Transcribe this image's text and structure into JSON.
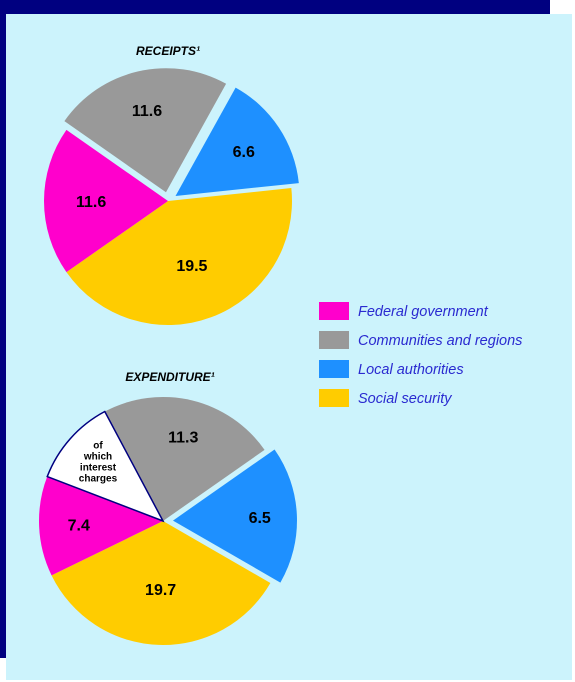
{
  "colors": {
    "federal": "#ff00cc",
    "communities": "#999999",
    "local": "#1e90ff",
    "social": "#ffcc00",
    "interest": "#ffffff"
  },
  "legend": [
    {
      "label": "Federal government",
      "color_key": "federal"
    },
    {
      "label": "Communities and regions",
      "color_key": "communities"
    },
    {
      "label": "Local authorities",
      "color_key": "local"
    },
    {
      "label": "Social security",
      "color_key": "social"
    }
  ],
  "chart_data": [
    {
      "type": "pie",
      "title": "RECEIPTS¹",
      "slices": [
        {
          "label": "Communities and regions",
          "value": 11.6,
          "color_key": "communities",
          "exploded": true
        },
        {
          "label": "Local authorities",
          "value": 6.6,
          "color_key": "local",
          "exploded": true
        },
        {
          "label": "Social security",
          "value": 19.5,
          "color_key": "social",
          "exploded": false
        },
        {
          "label": "Federal government",
          "value": 11.6,
          "color_key": "federal",
          "exploded": false
        }
      ]
    },
    {
      "type": "pie",
      "title": "EXPENDITURE¹",
      "slices": [
        {
          "label": "Communities and regions",
          "value": 11.3,
          "color_key": "communities",
          "exploded": false
        },
        {
          "label": "Local authorities",
          "value": 6.5,
          "color_key": "local",
          "exploded": true
        },
        {
          "label": "Social security",
          "value": 19.7,
          "color_key": "social",
          "exploded": false
        },
        {
          "label": "Federal government",
          "value": 7.4,
          "color_key": "federal",
          "exploded": false
        },
        {
          "label": "of which interest charges",
          "value_shown": false,
          "color_key": "interest",
          "exploded": false,
          "lines": [
            "of",
            "which",
            "interest",
            "charges"
          ]
        }
      ]
    }
  ]
}
